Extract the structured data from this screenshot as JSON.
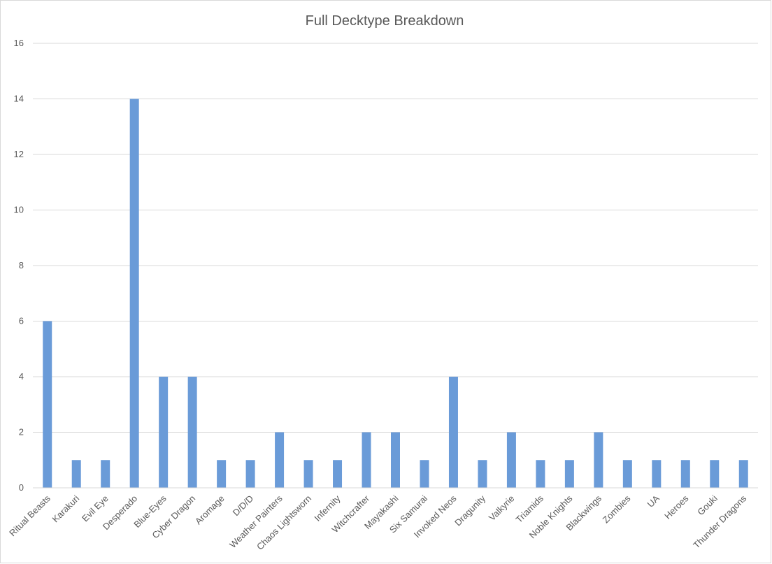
{
  "chart_data": {
    "type": "bar",
    "title": "Full Decktype Breakdown",
    "xlabel": "",
    "ylabel": "",
    "categories": [
      "Ritual Beasts",
      "Karakuri",
      "Evil Eye",
      "Desperado",
      "Blue-Eyes",
      "Cyber Dragon",
      "Aromage",
      "D/D/D",
      "Weather Painters",
      "Chaos Lightsworn",
      "Infernity",
      "Witchcrafter",
      "Mayakashi",
      "Six Samurai",
      "Invoked Neos",
      "Dragunity",
      "Valkyrie",
      "Triamids",
      "Noble Knights",
      "Blackwings",
      "Zombies",
      "UA",
      "Heroes",
      "Gouki",
      "Thunder Dragons"
    ],
    "values": [
      6,
      1,
      1,
      14,
      4,
      4,
      1,
      1,
      2,
      1,
      1,
      2,
      2,
      1,
      4,
      1,
      2,
      1,
      1,
      2,
      1,
      1,
      1,
      1,
      1
    ],
    "ylim": [
      0,
      16
    ],
    "yticks": [
      "0",
      "2",
      "4",
      "6",
      "8",
      "10",
      "12",
      "14",
      "16"
    ],
    "grid": true,
    "legend": "none",
    "bar_color": "#6a9bd8",
    "grid_color": "#d9d9d9"
  }
}
